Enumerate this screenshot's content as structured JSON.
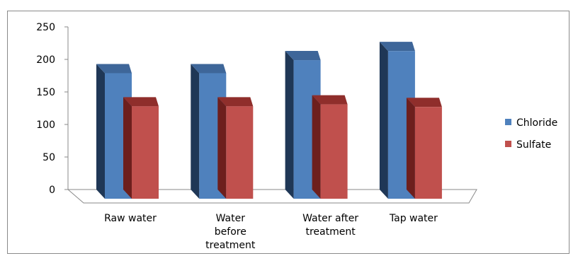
{
  "chart_data": {
    "type": "bar",
    "three_d": true,
    "categories": [
      "Raw water",
      "Water before treatment",
      "Water after treatment",
      "Tap water"
    ],
    "category_lines": [
      [
        "Raw water"
      ],
      [
        "Water",
        "before",
        "treatment"
      ],
      [
        "Water after",
        "treatment"
      ],
      [
        "Tap water"
      ]
    ],
    "series": [
      {
        "name": "Chloride",
        "values": [
          193,
          193,
          213,
          227
        ],
        "color": "#4f81bd",
        "side_color": "#1f3756",
        "top_color": "#3e6699"
      },
      {
        "name": "Sulfate",
        "values": [
          142,
          142,
          145,
          141
        ],
        "color": "#c0504d",
        "side_color": "#6d1f1d",
        "top_color": "#8f2e2b"
      }
    ],
    "ylim": [
      0,
      250
    ],
    "yticks": [
      0,
      50,
      100,
      150,
      200,
      250
    ],
    "grid": false,
    "legend_position": "right",
    "title": "",
    "xlabel": "",
    "ylabel": ""
  }
}
